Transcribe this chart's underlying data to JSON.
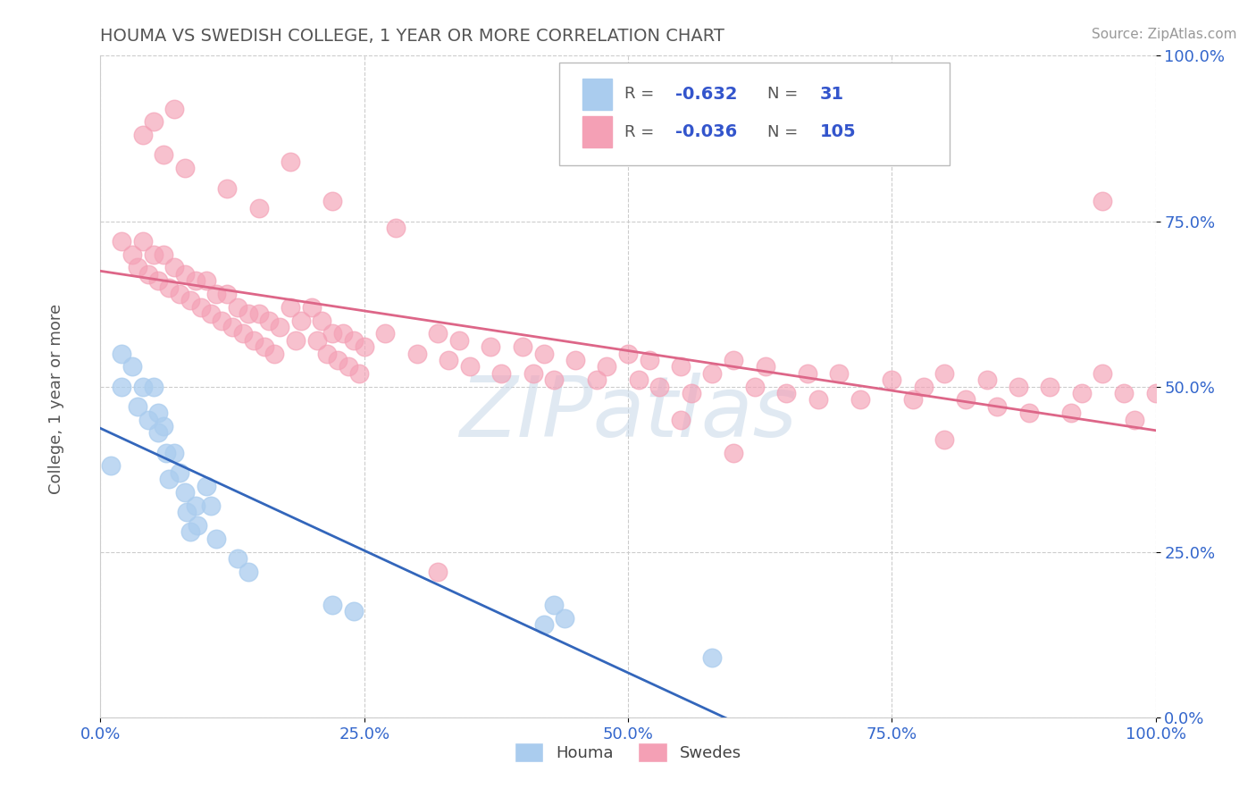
{
  "title": "HOUMA VS SWEDISH COLLEGE, 1 YEAR OR MORE CORRELATION CHART",
  "source_text": "Source: ZipAtlas.com",
  "ylabel": "College, 1 year or more",
  "xlim": [
    0,
    1
  ],
  "ylim": [
    0,
    1
  ],
  "xticks": [
    0,
    0.25,
    0.5,
    0.75,
    1.0
  ],
  "yticks": [
    0,
    0.25,
    0.5,
    0.75,
    1.0
  ],
  "xticklabels": [
    "0.0%",
    "25.0%",
    "50.0%",
    "75.0%",
    "100.0%"
  ],
  "yticklabels": [
    "0.0%",
    "25.0%",
    "50.0%",
    "75.0%",
    "100.0%"
  ],
  "houma_color": "#aaccee",
  "swedes_color": "#f4a0b5",
  "houma_line_color": "#3366bb",
  "swedes_line_color": "#dd6688",
  "houma_R": -0.632,
  "houma_N": 31,
  "swedes_R": -0.036,
  "swedes_N": 105,
  "watermark": "ZIPatlas",
  "background_color": "#ffffff",
  "grid_color": "#cccccc",
  "tick_color": "#3366cc",
  "title_color": "#555555",
  "source_color": "#999999",
  "houma_x": [
    0.01,
    0.02,
    0.02,
    0.03,
    0.035,
    0.04,
    0.045,
    0.05,
    0.055,
    0.055,
    0.06,
    0.062,
    0.065,
    0.07,
    0.075,
    0.08,
    0.082,
    0.085,
    0.09,
    0.092,
    0.1,
    0.105,
    0.11,
    0.13,
    0.14,
    0.22,
    0.24,
    0.42,
    0.43,
    0.44,
    0.58
  ],
  "houma_y": [
    0.38,
    0.55,
    0.5,
    0.53,
    0.47,
    0.5,
    0.45,
    0.5,
    0.46,
    0.43,
    0.44,
    0.4,
    0.36,
    0.4,
    0.37,
    0.34,
    0.31,
    0.28,
    0.32,
    0.29,
    0.35,
    0.32,
    0.27,
    0.24,
    0.22,
    0.17,
    0.16,
    0.14,
    0.17,
    0.15,
    0.09
  ],
  "swedes_x": [
    0.02,
    0.03,
    0.035,
    0.04,
    0.045,
    0.05,
    0.055,
    0.06,
    0.065,
    0.07,
    0.075,
    0.08,
    0.085,
    0.09,
    0.095,
    0.1,
    0.105,
    0.11,
    0.115,
    0.12,
    0.125,
    0.13,
    0.135,
    0.14,
    0.145,
    0.15,
    0.155,
    0.16,
    0.165,
    0.17,
    0.18,
    0.185,
    0.19,
    0.2,
    0.205,
    0.21,
    0.215,
    0.22,
    0.225,
    0.23,
    0.235,
    0.24,
    0.245,
    0.25,
    0.27,
    0.3,
    0.32,
    0.33,
    0.34,
    0.35,
    0.37,
    0.38,
    0.4,
    0.41,
    0.42,
    0.43,
    0.45,
    0.47,
    0.48,
    0.5,
    0.51,
    0.52,
    0.53,
    0.55,
    0.56,
    0.58,
    0.6,
    0.62,
    0.63,
    0.65,
    0.67,
    0.68,
    0.7,
    0.72,
    0.75,
    0.77,
    0.78,
    0.8,
    0.82,
    0.84,
    0.85,
    0.87,
    0.88,
    0.9,
    0.92,
    0.93,
    0.95,
    0.97,
    0.98,
    1.0,
    0.04,
    0.05,
    0.06,
    0.07,
    0.08,
    0.12,
    0.15,
    0.18,
    0.22,
    0.28,
    0.55,
    0.6,
    0.8,
    0.95,
    0.32
  ],
  "swedes_y": [
    0.72,
    0.7,
    0.68,
    0.72,
    0.67,
    0.7,
    0.66,
    0.7,
    0.65,
    0.68,
    0.64,
    0.67,
    0.63,
    0.66,
    0.62,
    0.66,
    0.61,
    0.64,
    0.6,
    0.64,
    0.59,
    0.62,
    0.58,
    0.61,
    0.57,
    0.61,
    0.56,
    0.6,
    0.55,
    0.59,
    0.62,
    0.57,
    0.6,
    0.62,
    0.57,
    0.6,
    0.55,
    0.58,
    0.54,
    0.58,
    0.53,
    0.57,
    0.52,
    0.56,
    0.58,
    0.55,
    0.58,
    0.54,
    0.57,
    0.53,
    0.56,
    0.52,
    0.56,
    0.52,
    0.55,
    0.51,
    0.54,
    0.51,
    0.53,
    0.55,
    0.51,
    0.54,
    0.5,
    0.53,
    0.49,
    0.52,
    0.54,
    0.5,
    0.53,
    0.49,
    0.52,
    0.48,
    0.52,
    0.48,
    0.51,
    0.48,
    0.5,
    0.52,
    0.48,
    0.51,
    0.47,
    0.5,
    0.46,
    0.5,
    0.46,
    0.49,
    0.52,
    0.49,
    0.45,
    0.49,
    0.88,
    0.9,
    0.85,
    0.92,
    0.83,
    0.8,
    0.77,
    0.84,
    0.78,
    0.74,
    0.45,
    0.4,
    0.42,
    0.78,
    0.22
  ]
}
